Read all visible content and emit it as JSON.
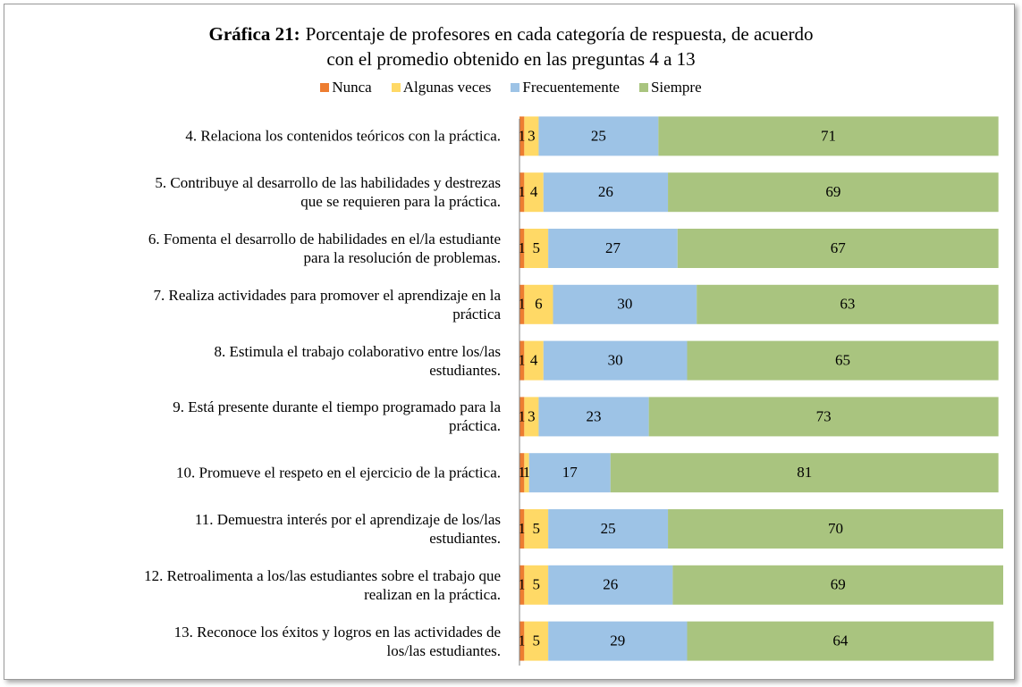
{
  "chart_data": {
    "type": "stacked-bar-horizontal",
    "title_prefix": "Gráfica 21:",
    "title": "Porcentaje de profesores en cada categoría de respuesta, de acuerdo\ncon el promedio obtenido en las preguntas 4 a 13",
    "categories": [
      "4. Relaciona los contenidos teóricos con la práctica.",
      "5. Contribuye al desarrollo de las habilidades y destrezas\nque se requieren para la práctica.",
      "6. Fomenta el desarrollo de habilidades en el/la estudiante\npara la resolución de problemas.",
      "7. Realiza actividades para promover el aprendizaje en la\npráctica",
      "8. Estimula el trabajo colaborativo entre los/las\nestudiantes.",
      "9. Está presente durante el tiempo programado para la\npráctica.",
      "10. Promueve el respeto en el ejercicio de la práctica.",
      "11. Demuestra interés por el aprendizaje de los/las\nestudiantes.",
      "12. Retroalimenta a los/las estudiantes sobre el trabajo que\nrealizan en la práctica.",
      "13. Reconoce los éxitos y logros en las actividades de\nlos/las estudiantes."
    ],
    "series": [
      {
        "name": "Nunca",
        "color": "#ed7d31",
        "values": [
          1,
          1,
          1,
          1,
          1,
          1,
          1,
          1,
          1,
          1
        ]
      },
      {
        "name": "Algunas veces",
        "color": "#ffd966",
        "values": [
          3,
          4,
          5,
          6,
          4,
          3,
          1,
          5,
          5,
          5
        ]
      },
      {
        "name": "Frecuentemente",
        "color": "#9dc3e6",
        "values": [
          25,
          26,
          27,
          30,
          30,
          23,
          17,
          25,
          26,
          29
        ]
      },
      {
        "name": "Siempre",
        "color": "#a9c47f",
        "values": [
          71,
          69,
          67,
          63,
          65,
          73,
          81,
          70,
          69,
          64
        ]
      }
    ],
    "xlim": [
      0,
      101
    ]
  }
}
